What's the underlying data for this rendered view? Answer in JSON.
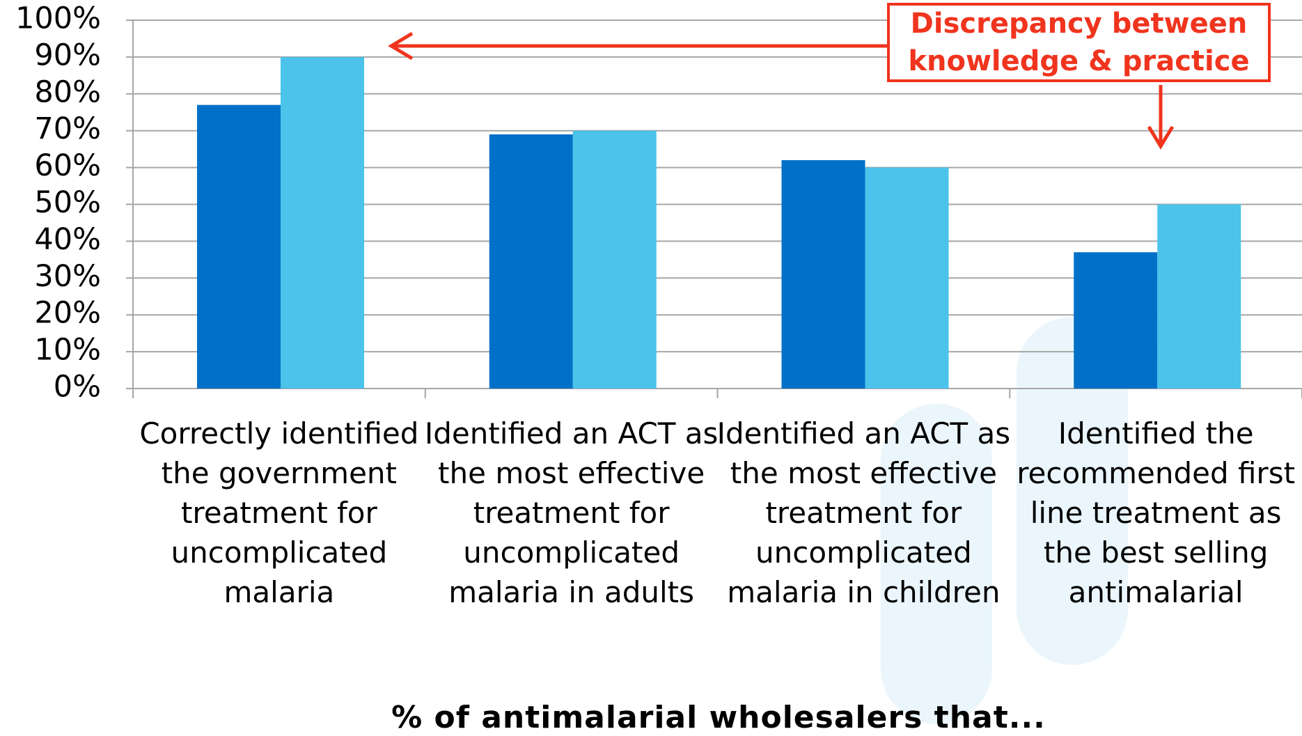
{
  "chart_data": {
    "type": "bar",
    "categories": [
      "Correctly identified the government treatment for uncomplicated malaria",
      "Identified an ACT as the most effective treatment for uncomplicated malaria in adults",
      "Identified an ACT as the most effective treatment for uncomplicated malaria in children",
      "Identified the recommended first line treatment as the best selling antimalarial"
    ],
    "series": [
      {
        "color": "#0070c8",
        "values": [
          77,
          69,
          62,
          37
        ]
      },
      {
        "color": "#4bc3ea",
        "values": [
          90,
          70,
          60,
          50
        ]
      }
    ],
    "ylim": [
      0,
      100
    ],
    "yticks": [
      {
        "value": 0,
        "label": "0%"
      },
      {
        "value": 10,
        "label": "10%"
      },
      {
        "value": 20,
        "label": "20%"
      },
      {
        "value": 30,
        "label": "30%"
      },
      {
        "value": 40,
        "label": "40%"
      },
      {
        "value": 50,
        "label": "50%"
      },
      {
        "value": 60,
        "label": "60%"
      },
      {
        "value": 70,
        "label": "70%"
      },
      {
        "value": 80,
        "label": "80%"
      },
      {
        "value": 90,
        "label": "90%"
      },
      {
        "value": 100,
        "label": "100%"
      }
    ],
    "grid": true,
    "xlabel": "% of antimalarial wholesalers that...",
    "annotation": "Discrepancy between knowledge & practice",
    "annotation_color": "#f0341e"
  }
}
